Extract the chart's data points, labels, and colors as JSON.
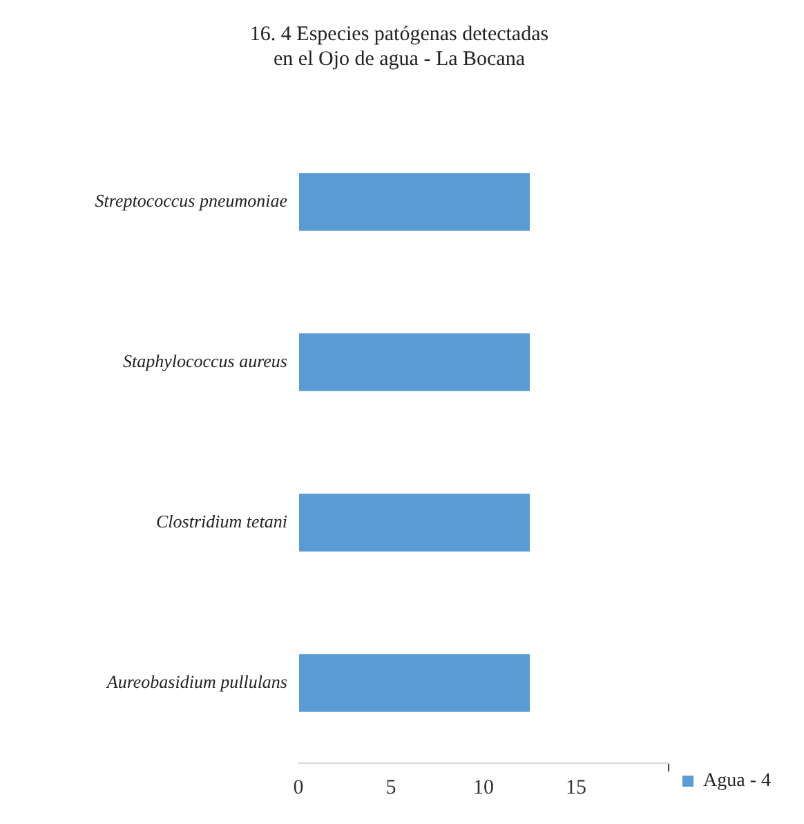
{
  "chart_data": {
    "type": "bar",
    "orientation": "horizontal",
    "title": [
      "16. 4 Especies patógenas detectadas",
      "en el Ojo de agua - La Bocana"
    ],
    "categories": [
      "Streptococcus pneumoniae",
      "Staphylococcus aureus",
      "Clostridium tetani",
      "Aureobasidium pullulans"
    ],
    "series": [
      {
        "name": "Agua - 4",
        "color": "#5b9bd5",
        "values": [
          12.5,
          12.5,
          12.5,
          12.5
        ]
      }
    ],
    "xlim": [
      0,
      20
    ],
    "xticks": [
      0,
      5,
      10,
      15,
      {
        "value": 20,
        "label": null
      }
    ],
    "grid": false,
    "legend": "right"
  }
}
